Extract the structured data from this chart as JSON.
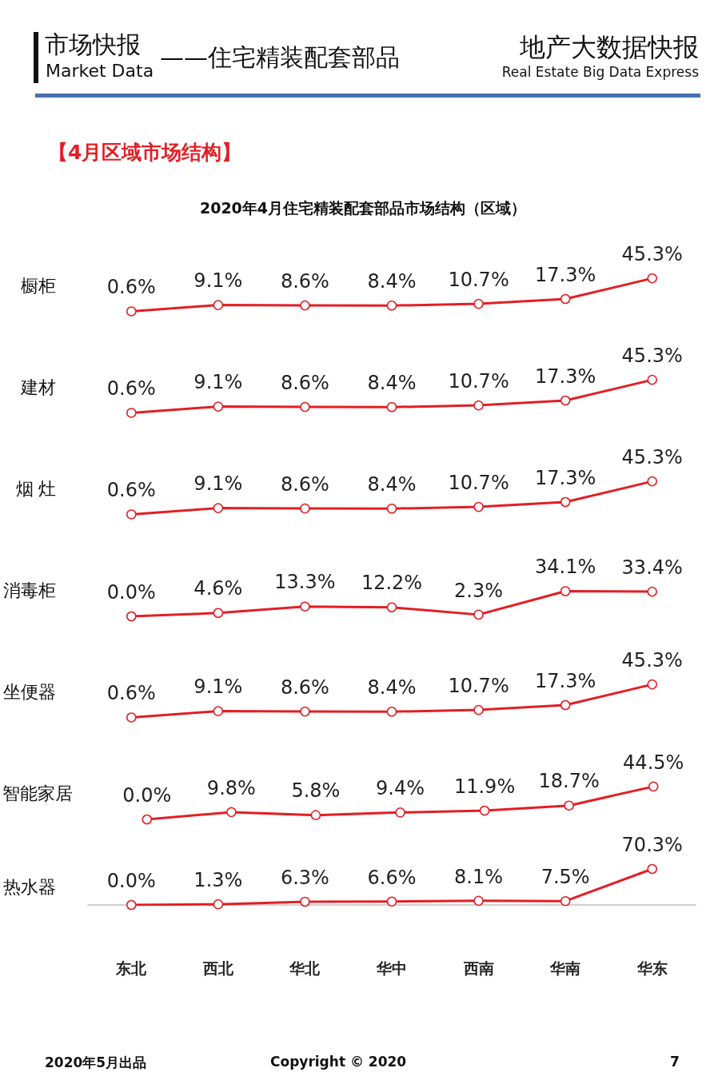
{
  "chart_data": [
    {
      "type": "line",
      "title": "2020年4月住宅精装配套部品市场结构（区域）",
      "ylabel": "橱柜",
      "categories": [
        null,
        null,
        null,
        null,
        null,
        null,
        null
      ],
      "values": [
        0.6,
        9.1,
        8.6,
        8.4,
        10.7,
        17.3,
        45.3
      ],
      "value_labels": [
        "0.6%",
        "9.1%",
        "8.6%",
        "8.4%",
        "10.7%",
        "17.3%",
        "45.3%"
      ],
      "color": "#e31e24",
      "marker": "circle",
      "line_style": "solid",
      "tick_labels": false,
      "annotations": [
        "市场快报",
        "Market Data",
        "——住宅精装配套部品",
        "地产大数据快报",
        "Real Estate Big Data Express",
        "【4月区域市场结构】"
      ]
    },
    {
      "type": "line",
      "ylabel": "建材",
      "categories": [
        null,
        null,
        null,
        null,
        null,
        null,
        null
      ],
      "values": [
        0.6,
        9.1,
        8.6,
        8.4,
        10.7,
        17.3,
        45.3
      ],
      "value_labels": [
        "0.6%",
        "9.1%",
        "8.6%",
        "8.4%",
        "10.7%",
        "17.3%",
        "45.3%"
      ],
      "color": "#e31e24",
      "marker": "circle",
      "line_style": "solid",
      "tick_labels": false
    },
    {
      "type": "line",
      "ylabel": "烟 灶",
      "categories": [
        null,
        null,
        null,
        null,
        null,
        null,
        null
      ],
      "values": [
        0.6,
        9.1,
        8.6,
        8.4,
        10.7,
        17.3,
        45.3
      ],
      "value_labels": [
        "0.6%",
        "9.1%",
        "8.6%",
        "8.4%",
        "10.7%",
        "17.3%",
        "45.3%"
      ],
      "color": "#e31e24",
      "marker": "circle",
      "line_style": "solid",
      "tick_labels": false
    },
    {
      "type": "line",
      "ylabel": "消毒柜",
      "categories": [
        null,
        null,
        null,
        null,
        null,
        null,
        null
      ],
      "values": [
        0.0,
        4.6,
        13.3,
        12.2,
        2.3,
        34.1,
        33.4
      ],
      "value_labels": [
        "0.0%",
        "4.6%",
        "13.3%",
        "12.2%",
        "2.3%",
        "34.1%",
        "33.4%"
      ],
      "color": "#e31e24",
      "marker": "circle",
      "line_style": "solid",
      "tick_labels": false
    },
    {
      "type": "line",
      "ylabel": "坐便器",
      "categories": [
        null,
        null,
        null,
        null,
        null,
        null,
        null
      ],
      "values": [
        0.6,
        9.1,
        8.6,
        8.4,
        10.7,
        17.3,
        45.3
      ],
      "value_labels": [
        "0.6%",
        "9.1%",
        "8.6%",
        "8.4%",
        "10.7%",
        "17.3%",
        "45.3%"
      ],
      "color": "#e31e24",
      "marker": "circle",
      "line_style": "solid",
      "tick_labels": false
    },
    {
      "type": "line",
      "ylabel": "智能家居",
      "categories": [
        null,
        null,
        null,
        null,
        null,
        null,
        null
      ],
      "values": [
        0.0,
        9.8,
        5.8,
        9.4,
        11.9,
        18.7,
        44.5
      ],
      "value_labels": [
        "0.0%",
        "9.8%",
        "5.8%",
        "9.4%",
        "11.9%",
        "18.7%",
        "44.5%"
      ],
      "color": "#e31e24",
      "marker": "circle",
      "line_style": "solid",
      "tick_labels": false
    },
    {
      "type": "line",
      "ylabel": "热水器",
      "categories": [
        "东北",
        "西北",
        "华北",
        "华中",
        "西南",
        "华南",
        "华东"
      ],
      "values": [
        0.0,
        1.3,
        6.3,
        6.6,
        8.1,
        7.5,
        70.3
      ],
      "value_labels": [
        "0.0%",
        "1.3%",
        "6.3%",
        "6.6%",
        "8.1%",
        "7.5%",
        "70.3%"
      ],
      "color": "#e31e24",
      "marker": "circle",
      "line_style": "solid",
      "tick_labels": "x",
      "annotations": [
        "2020年5月出品",
        "Copyright © 2020",
        "7"
      ]
    }
  ]
}
